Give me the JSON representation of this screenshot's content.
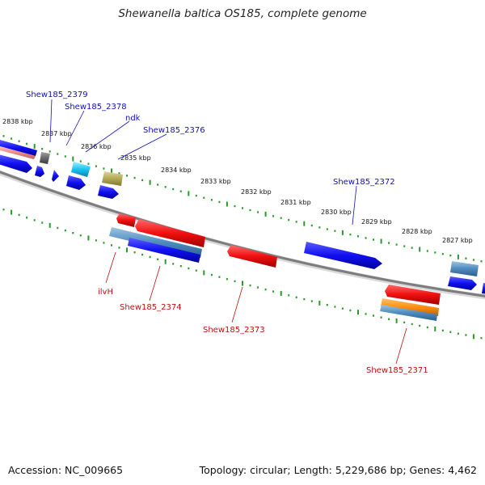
{
  "title": "Shewanella baltica OS185, complete genome",
  "footer": {
    "accession": "Accession: NC_009665",
    "summary": "Topology: circular; Length: 5,229,686 bp; Genes: 4,462"
  },
  "colors": {
    "backbone": "#8a8a8a",
    "ticks": "#2a9a2a",
    "label_forward": "#1010c0",
    "label_reverse": "#c01010"
  },
  "kbp_labels": [
    "2838 kbp",
    "2837 kbp",
    "2836 kbp",
    "2835 kbp",
    "2834 kbp",
    "2833 kbp",
    "2832 kbp",
    "2831 kbp",
    "2830 kbp",
    "2829 kbp",
    "2828 kbp",
    "2827 kbp"
  ],
  "gene_labels": {
    "forward": [
      "Shew185_2379",
      "Shew185_2378",
      "ndk",
      "Shew185_2376",
      "Shew185_2372"
    ],
    "reverse": [
      "ilvH",
      "Shew185_2374",
      "Shew185_2373",
      "Shew185_2371"
    ]
  }
}
